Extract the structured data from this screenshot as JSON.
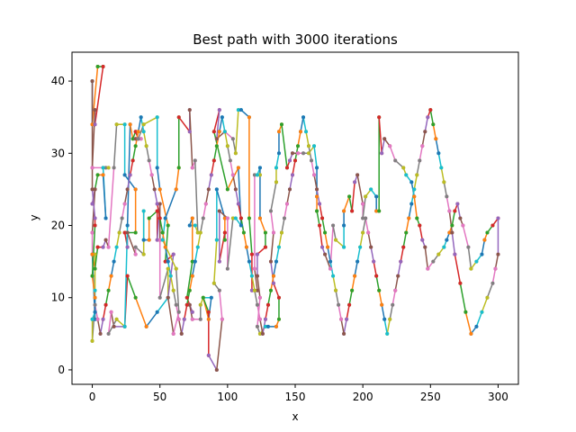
{
  "chart_data": {
    "type": "line",
    "title": "Best path with 3000 iterations",
    "xlabel": "x",
    "ylabel": "y",
    "xlim": [
      -15,
      315
    ],
    "ylim": [
      -2,
      44
    ],
    "xticks": [
      0,
      50,
      100,
      150,
      200,
      250,
      300
    ],
    "yticks": [
      0,
      10,
      20,
      30,
      40
    ],
    "grid": false,
    "legend": "none",
    "colors": [
      "#1f77b4",
      "#ff7f0e",
      "#2ca02c",
      "#d62728",
      "#9467bd",
      "#8c564b",
      "#e377c2",
      "#7f7f7f",
      "#bcbd22",
      "#17becf"
    ],
    "path": [
      [
        0,
        40
      ],
      [
        0,
        34
      ],
      [
        4,
        42
      ],
      [
        8,
        42
      ],
      [
        2,
        34
      ],
      [
        2,
        36
      ],
      [
        0,
        28
      ],
      [
        10,
        28
      ],
      [
        12,
        28
      ],
      [
        8,
        28
      ],
      [
        10,
        21
      ],
      [
        8,
        27
      ],
      [
        4,
        27
      ],
      [
        2,
        25
      ],
      [
        0,
        23
      ],
      [
        2,
        25
      ],
      [
        0,
        19
      ],
      [
        0,
        16
      ],
      [
        2,
        16
      ],
      [
        2,
        11
      ],
      [
        2,
        7
      ],
      [
        0,
        16
      ],
      [
        2,
        14
      ],
      [
        4,
        17
      ],
      [
        8,
        17
      ],
      [
        10,
        18
      ],
      [
        12,
        17
      ],
      [
        16,
        28
      ],
      [
        18,
        34
      ],
      [
        24,
        34
      ],
      [
        24,
        27
      ],
      [
        32,
        25
      ],
      [
        32,
        19
      ],
      [
        24,
        19
      ],
      [
        26,
        17
      ],
      [
        26,
        19
      ],
      [
        32,
        16
      ],
      [
        32,
        17
      ],
      [
        38,
        16
      ],
      [
        38,
        22
      ],
      [
        38,
        18
      ],
      [
        42,
        18
      ],
      [
        42,
        21
      ],
      [
        48,
        22
      ],
      [
        48,
        18
      ],
      [
        50,
        23
      ],
      [
        50,
        18
      ],
      [
        50,
        10
      ],
      [
        56,
        14
      ],
      [
        56,
        10
      ],
      [
        48,
        8
      ],
      [
        40,
        6
      ],
      [
        32,
        10
      ],
      [
        26,
        13
      ],
      [
        24,
        6
      ],
      [
        16,
        6
      ],
      [
        14,
        8
      ],
      [
        12,
        5
      ],
      [
        18,
        7
      ],
      [
        24,
        6
      ],
      [
        26,
        20
      ],
      [
        28,
        34
      ],
      [
        30,
        32
      ],
      [
        32,
        33
      ],
      [
        34,
        32
      ],
      [
        32,
        32
      ],
      [
        36,
        32
      ],
      [
        34,
        32
      ],
      [
        38,
        34
      ],
      [
        48,
        35
      ],
      [
        48,
        28
      ],
      [
        50,
        25
      ],
      [
        56,
        20
      ],
      [
        54,
        15
      ],
      [
        60,
        16
      ],
      [
        56,
        10
      ],
      [
        60,
        5
      ],
      [
        64,
        8
      ],
      [
        62,
        14
      ],
      [
        52,
        18
      ],
      [
        54,
        21
      ],
      [
        62,
        25
      ],
      [
        64,
        28
      ],
      [
        64,
        35
      ],
      [
        72,
        33
      ],
      [
        72,
        36
      ],
      [
        74,
        28
      ],
      [
        76,
        29
      ],
      [
        78,
        19
      ],
      [
        76,
        20
      ],
      [
        72,
        20
      ],
      [
        74,
        21
      ],
      [
        74,
        15
      ],
      [
        70,
        10
      ],
      [
        74,
        8
      ],
      [
        72,
        9
      ],
      [
        74,
        7
      ],
      [
        80,
        7
      ],
      [
        80,
        9
      ],
      [
        82,
        10
      ],
      [
        88,
        10
      ],
      [
        86,
        7
      ],
      [
        82,
        10
      ],
      [
        86,
        8
      ],
      [
        86,
        2
      ],
      [
        92,
        0
      ],
      [
        96,
        7
      ],
      [
        94,
        11
      ],
      [
        90,
        12
      ],
      [
        92,
        18
      ],
      [
        92,
        25
      ],
      [
        98,
        21
      ],
      [
        98,
        18
      ],
      [
        98,
        19
      ],
      [
        94,
        15
      ],
      [
        94,
        22
      ],
      [
        100,
        21
      ],
      [
        100,
        14
      ],
      [
        104,
        21
      ],
      [
        106,
        21
      ],
      [
        110,
        20
      ],
      [
        108,
        28
      ],
      [
        100,
        25
      ],
      [
        90,
        33
      ],
      [
        94,
        36
      ],
      [
        92,
        32
      ],
      [
        98,
        33
      ],
      [
        104,
        32
      ],
      [
        106,
        30
      ],
      [
        108,
        36
      ],
      [
        110,
        36
      ],
      [
        116,
        35
      ],
      [
        116,
        21
      ],
      [
        118,
        16
      ],
      [
        118,
        11
      ],
      [
        122,
        11
      ],
      [
        120,
        14
      ],
      [
        120,
        27
      ],
      [
        124,
        27
      ],
      [
        122,
        27
      ],
      [
        124,
        28
      ],
      [
        124,
        21
      ],
      [
        128,
        19
      ],
      [
        128,
        17
      ],
      [
        122,
        16
      ],
      [
        122,
        13
      ],
      [
        124,
        10
      ],
      [
        122,
        6
      ],
      [
        124,
        5
      ],
      [
        128,
        6
      ],
      [
        130,
        6
      ],
      [
        136,
        6
      ],
      [
        138,
        7
      ],
      [
        138,
        10
      ],
      [
        134,
        12
      ],
      [
        132,
        15
      ],
      [
        134,
        19
      ],
      [
        132,
        22
      ],
      [
        136,
        26
      ],
      [
        136,
        28
      ],
      [
        138,
        30
      ],
      [
        138,
        33
      ],
      [
        140,
        34
      ],
      [
        144,
        28
      ],
      [
        146,
        29
      ],
      [
        148,
        30
      ],
      [
        152,
        30
      ],
      [
        156,
        30
      ],
      [
        160,
        30
      ],
      [
        164,
        31
      ],
      [
        166,
        28
      ],
      [
        166,
        24
      ],
      [
        166,
        22
      ],
      [
        168,
        20
      ],
      [
        170,
        17
      ],
      [
        172,
        16
      ],
      [
        176,
        14
      ],
      [
        178,
        20
      ],
      [
        180,
        18
      ],
      [
        186,
        17
      ],
      [
        186,
        20
      ],
      [
        186,
        22
      ],
      [
        190,
        24
      ],
      [
        192,
        22
      ],
      [
        194,
        26
      ],
      [
        196,
        27
      ],
      [
        200,
        23
      ],
      [
        200,
        21
      ],
      [
        202,
        24
      ],
      [
        206,
        25
      ],
      [
        210,
        24
      ],
      [
        210,
        22
      ],
      [
        212,
        22
      ],
      [
        212,
        35
      ],
      [
        214,
        30
      ],
      [
        216,
        32
      ],
      [
        220,
        31
      ],
      [
        224,
        29
      ],
      [
        230,
        28
      ],
      [
        232,
        27
      ],
      [
        236,
        26
      ],
      [
        238,
        24
      ],
      [
        240,
        21
      ],
      [
        242,
        20
      ],
      [
        244,
        18
      ],
      [
        246,
        17
      ],
      [
        248,
        14
      ],
      [
        252,
        15
      ],
      [
        256,
        16
      ],
      [
        260,
        17
      ],
      [
        262,
        18
      ],
      [
        264,
        19
      ],
      [
        266,
        20
      ],
      [
        268,
        22
      ],
      [
        270,
        23
      ],
      [
        272,
        21
      ],
      [
        274,
        20
      ],
      [
        278,
        17
      ],
      [
        280,
        14
      ],
      [
        284,
        15
      ],
      [
        288,
        16
      ],
      [
        290,
        18
      ],
      [
        292,
        19
      ],
      [
        296,
        20
      ],
      [
        300,
        21
      ],
      [
        300,
        16
      ],
      [
        298,
        14
      ],
      [
        296,
        12
      ],
      [
        292,
        10
      ],
      [
        288,
        8
      ],
      [
        284,
        6
      ],
      [
        280,
        5
      ],
      [
        276,
        8
      ],
      [
        272,
        12
      ],
      [
        268,
        16
      ],
      [
        266,
        19
      ],
      [
        264,
        22
      ],
      [
        262,
        24
      ],
      [
        260,
        26
      ],
      [
        258,
        28
      ],
      [
        256,
        30
      ],
      [
        254,
        32
      ],
      [
        252,
        34
      ],
      [
        250,
        36
      ],
      [
        248,
        35
      ],
      [
        246,
        33
      ],
      [
        244,
        31
      ],
      [
        242,
        29
      ],
      [
        240,
        27
      ],
      [
        238,
        25
      ],
      [
        236,
        23
      ],
      [
        234,
        21
      ],
      [
        232,
        19
      ],
      [
        230,
        17
      ],
      [
        228,
        15
      ],
      [
        226,
        13
      ],
      [
        224,
        11
      ],
      [
        222,
        9
      ],
      [
        220,
        7
      ],
      [
        218,
        5
      ],
      [
        216,
        7
      ],
      [
        214,
        9
      ],
      [
        212,
        11
      ],
      [
        210,
        13
      ],
      [
        208,
        15
      ],
      [
        206,
        17
      ],
      [
        204,
        19
      ],
      [
        202,
        21
      ],
      [
        200,
        19
      ],
      [
        198,
        17
      ],
      [
        196,
        15
      ],
      [
        194,
        13
      ],
      [
        192,
        11
      ],
      [
        190,
        9
      ],
      [
        188,
        7
      ],
      [
        186,
        5
      ],
      [
        184,
        7
      ],
      [
        182,
        9
      ],
      [
        180,
        11
      ],
      [
        178,
        13
      ],
      [
        176,
        15
      ],
      [
        174,
        17
      ],
      [
        172,
        19
      ],
      [
        170,
        21
      ],
      [
        168,
        23
      ],
      [
        166,
        25
      ],
      [
        164,
        27
      ],
      [
        162,
        29
      ],
      [
        160,
        31
      ],
      [
        158,
        33
      ],
      [
        156,
        35
      ],
      [
        154,
        33
      ],
      [
        152,
        31
      ],
      [
        150,
        29
      ],
      [
        148,
        27
      ],
      [
        146,
        25
      ],
      [
        144,
        23
      ],
      [
        142,
        21
      ],
      [
        140,
        19
      ],
      [
        138,
        17
      ],
      [
        136,
        15
      ],
      [
        134,
        13
      ],
      [
        132,
        11
      ],
      [
        130,
        9
      ],
      [
        128,
        7
      ],
      [
        126,
        5
      ],
      [
        124,
        7
      ],
      [
        122,
        9
      ],
      [
        120,
        11
      ],
      [
        118,
        13
      ],
      [
        116,
        15
      ],
      [
        114,
        17
      ],
      [
        112,
        19
      ],
      [
        110,
        21
      ],
      [
        108,
        23
      ],
      [
        106,
        25
      ],
      [
        104,
        27
      ],
      [
        102,
        29
      ],
      [
        100,
        31
      ],
      [
        98,
        33
      ],
      [
        96,
        35
      ],
      [
        94,
        33
      ],
      [
        92,
        31
      ],
      [
        90,
        29
      ],
      [
        88,
        27
      ],
      [
        86,
        25
      ],
      [
        84,
        23
      ],
      [
        82,
        21
      ],
      [
        80,
        19
      ],
      [
        78,
        17
      ],
      [
        76,
        15
      ],
      [
        74,
        13
      ],
      [
        72,
        11
      ],
      [
        70,
        9
      ],
      [
        68,
        7
      ],
      [
        66,
        5
      ],
      [
        64,
        7
      ],
      [
        62,
        9
      ],
      [
        60,
        11
      ],
      [
        58,
        13
      ],
      [
        56,
        15
      ],
      [
        54,
        17
      ],
      [
        52,
        19
      ],
      [
        50,
        21
      ],
      [
        48,
        23
      ],
      [
        46,
        25
      ],
      [
        44,
        27
      ],
      [
        42,
        29
      ],
      [
        40,
        31
      ],
      [
        38,
        33
      ],
      [
        36,
        35
      ],
      [
        34,
        33
      ],
      [
        32,
        31
      ],
      [
        30,
        29
      ],
      [
        28,
        27
      ],
      [
        26,
        25
      ],
      [
        24,
        23
      ],
      [
        22,
        21
      ],
      [
        20,
        19
      ],
      [
        18,
        17
      ],
      [
        16,
        15
      ],
      [
        14,
        13
      ],
      [
        12,
        11
      ],
      [
        10,
        9
      ],
      [
        8,
        7
      ],
      [
        6,
        5
      ],
      [
        4,
        7
      ],
      [
        2,
        9
      ],
      [
        0,
        4
      ],
      [
        0,
        7
      ],
      [
        2,
        8
      ],
      [
        2,
        10
      ],
      [
        0,
        13
      ],
      [
        2,
        20
      ],
      [
        2,
        21
      ],
      [
        0,
        25
      ],
      [
        0,
        40
      ]
    ]
  }
}
